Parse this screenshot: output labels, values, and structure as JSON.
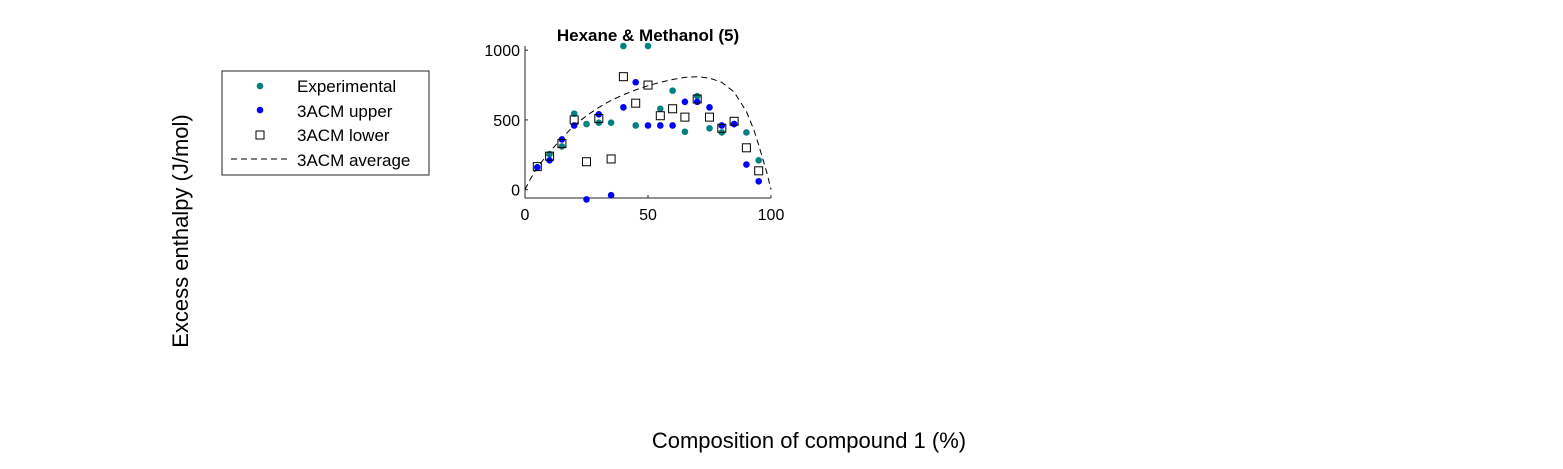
{
  "figure": {
    "ylabel": "Excess enthalpy (J/mol)",
    "xlabel": "Composition of compound 1 (%)"
  },
  "legend": {
    "placement": "left, outside axes",
    "entries": [
      {
        "label": "Experimental",
        "marker": "filled-circle",
        "color": "#008080"
      },
      {
        "label": "3ACM upper",
        "marker": "filled-circle",
        "color": "#0000ff"
      },
      {
        "label": "3ACM lower",
        "marker": "open-square",
        "color": "#000000"
      },
      {
        "label": "3ACM average",
        "marker": "dashed-line",
        "color": "#000000"
      }
    ]
  },
  "chart_data": {
    "type": "scatter",
    "title": "Hexane & Methanol (5)",
    "xlabel": "",
    "ylabel": "",
    "xlim": [
      0,
      100
    ],
    "ylim": [
      -60,
      1030
    ],
    "xticks": [
      0,
      50,
      100
    ],
    "yticks": [
      0,
      500,
      1000
    ],
    "xtick_labels": [
      "0",
      "50",
      "100"
    ],
    "ytick_labels": [
      "0",
      "500",
      "1000"
    ],
    "grid": false,
    "series": [
      {
        "name": "Experimental",
        "color": "#008080",
        "marker": "filled-circle",
        "x": [
          5,
          10,
          15,
          20,
          25,
          30,
          35,
          40,
          45,
          50,
          55,
          60,
          65,
          70,
          75,
          80,
          85,
          90,
          95
        ],
        "y": [
          160,
          255,
          310,
          545,
          470,
          480,
          480,
          1030,
          460,
          1030,
          580,
          710,
          415,
          670,
          440,
          410,
          470,
          410,
          210
        ]
      },
      {
        "name": "3ACM upper",
        "color": "#0000ff",
        "marker": "filled-circle",
        "x": [
          5,
          10,
          15,
          20,
          25,
          30,
          35,
          40,
          45,
          50,
          55,
          60,
          65,
          70,
          75,
          80,
          85,
          90,
          95
        ],
        "y": [
          160,
          210,
          360,
          460,
          -70,
          540,
          -40,
          590,
          770,
          460,
          460,
          460,
          630,
          630,
          590,
          460,
          470,
          180,
          60
        ]
      },
      {
        "name": "3ACM lower",
        "color": "#000000",
        "marker": "open-square",
        "x": [
          5,
          10,
          15,
          20,
          25,
          30,
          35,
          40,
          45,
          50,
          55,
          60,
          65,
          70,
          75,
          80,
          85,
          90,
          95
        ],
        "y": [
          165,
          240,
          330,
          500,
          200,
          510,
          220,
          810,
          620,
          750,
          530,
          580,
          520,
          650,
          520,
          440,
          490,
          300,
          135
        ]
      },
      {
        "name": "3ACM average",
        "color": "#000000",
        "marker": "dashed-line",
        "x": [
          0,
          2,
          5,
          10,
          15,
          20,
          25,
          30,
          35,
          40,
          45,
          50,
          55,
          60,
          65,
          70,
          75,
          80,
          85,
          90,
          93,
          95,
          97,
          98.5,
          99.3,
          100
        ],
        "y": [
          0,
          70,
          160,
          270,
          370,
          460,
          530,
          590,
          640,
          680,
          715,
          745,
          770,
          790,
          805,
          810,
          800,
          770,
          700,
          560,
          430,
          320,
          200,
          110,
          50,
          0
        ]
      }
    ]
  }
}
